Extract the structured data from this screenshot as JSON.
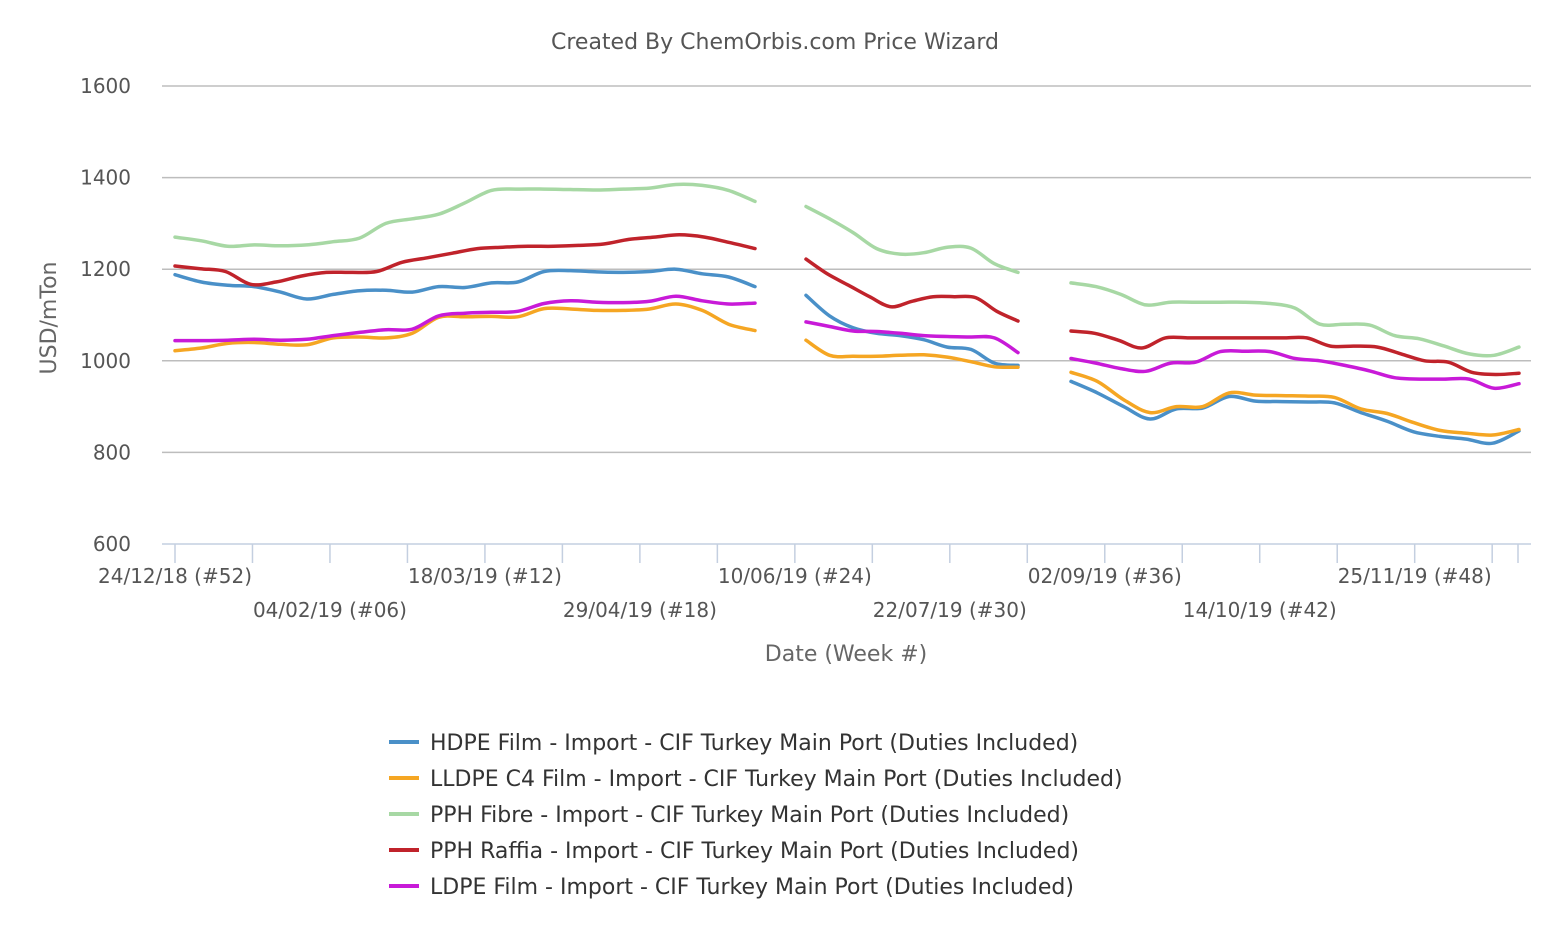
{
  "chart_data": {
    "type": "line",
    "title": "Created By ChemOrbis.com Price Wizard",
    "xlabel": "Date (Week #)",
    "ylabel": "USD/mTon",
    "ylim": [
      600,
      1600
    ],
    "yticks": [
      600,
      800,
      1000,
      1200,
      1400,
      1600
    ],
    "grid": true,
    "legend_position": "bottom",
    "x_weeks_total": 52,
    "x_tick_labels": [
      {
        "week": 0,
        "label": "24/12/18 (#52)"
      },
      {
        "week": 6,
        "label": "04/02/19 (#06)"
      },
      {
        "week": 12,
        "label": "18/03/19 (#12)"
      },
      {
        "week": 18,
        "label": "29/04/19 (#18)"
      },
      {
        "week": 24,
        "label": "10/06/19 (#24)"
      },
      {
        "week": 30,
        "label": "22/07/19 (#30)"
      },
      {
        "week": 36,
        "label": "02/09/19 (#36)"
      },
      {
        "week": 42,
        "label": "14/10/19 (#42)"
      },
      {
        "week": 48,
        "label": "25/11/19 (#48)"
      }
    ],
    "series": [
      {
        "name": "HDPE Film - Import - CIF Turkey Main Port (Duties Included)",
        "color": "#4a90c8",
        "segments": [
          [
            [
              0,
              1188
            ],
            [
              1,
              1172
            ],
            [
              2,
              1165
            ],
            [
              3,
              1162
            ],
            [
              4,
              1150
            ],
            [
              5,
              1135
            ],
            [
              6,
              1145
            ],
            [
              7,
              1153
            ],
            [
              8,
              1154
            ],
            [
              9,
              1150
            ],
            [
              10,
              1162
            ],
            [
              11,
              1160
            ],
            [
              12,
              1170
            ],
            [
              13,
              1172
            ],
            [
              14,
              1195
            ],
            [
              15,
              1197
            ],
            [
              16,
              1194
            ],
            [
              17,
              1193
            ],
            [
              18,
              1195
            ],
            [
              19,
              1200
            ],
            [
              20,
              1190
            ],
            [
              21,
              1183
            ],
            [
              22,
              1162
            ]
          ],
          [
            [
              24,
              1143
            ],
            [
              25,
              1098
            ],
            [
              26,
              1072
            ],
            [
              27,
              1060
            ],
            [
              28,
              1055
            ],
            [
              29,
              1046
            ],
            [
              30,
              1030
            ],
            [
              31,
              1025
            ],
            [
              32,
              995
            ],
            [
              33,
              990
            ]
          ],
          [
            [
              34,
              955
            ],
            [
              35,
              930
            ],
            [
              36,
              900
            ],
            [
              37,
              873
            ],
            [
              38,
              895
            ],
            [
              39,
              897
            ],
            [
              40,
              922
            ],
            [
              41,
              912
            ],
            [
              42,
              911
            ],
            [
              43,
              910
            ],
            [
              44,
              908
            ],
            [
              45,
              887
            ],
            [
              46,
              868
            ],
            [
              47,
              845
            ],
            [
              48,
              835
            ],
            [
              49,
              829
            ],
            [
              50,
              820
            ],
            [
              51,
              847
            ]
          ]
        ]
      },
      {
        "name": "LLDPE C4 Film - Import - CIF Turkey Main Port (Duties Included)",
        "color": "#f5a623",
        "segments": [
          [
            [
              0,
              1022
            ],
            [
              1,
              1028
            ],
            [
              2,
              1038
            ],
            [
              3,
              1040
            ],
            [
              4,
              1036
            ],
            [
              5,
              1035
            ],
            [
              6,
              1050
            ],
            [
              7,
              1052
            ],
            [
              8,
              1050
            ],
            [
              9,
              1060
            ],
            [
              10,
              1095
            ],
            [
              11,
              1096
            ],
            [
              12,
              1097
            ],
            [
              13,
              1096
            ],
            [
              14,
              1114
            ],
            [
              15,
              1113
            ],
            [
              16,
              1110
            ],
            [
              17,
              1110
            ],
            [
              18,
              1113
            ],
            [
              19,
              1124
            ],
            [
              20,
              1110
            ],
            [
              21,
              1080
            ],
            [
              22,
              1066
            ]
          ],
          [
            [
              24,
              1045
            ],
            [
              25,
              1012
            ],
            [
              26,
              1010
            ],
            [
              27,
              1010
            ],
            [
              28,
              1012
            ],
            [
              29,
              1013
            ],
            [
              30,
              1008
            ],
            [
              31,
              998
            ],
            [
              32,
              987
            ],
            [
              33,
              986
            ]
          ],
          [
            [
              34,
              975
            ],
            [
              35,
              955
            ],
            [
              36,
              915
            ],
            [
              37,
              887
            ],
            [
              38,
              900
            ],
            [
              39,
              900
            ],
            [
              40,
              930
            ],
            [
              41,
              925
            ],
            [
              42,
              924
            ],
            [
              43,
              923
            ],
            [
              44,
              920
            ],
            [
              45,
              895
            ],
            [
              46,
              885
            ],
            [
              47,
              865
            ],
            [
              48,
              848
            ],
            [
              49,
              842
            ],
            [
              50,
              838
            ],
            [
              51,
              850
            ]
          ]
        ]
      },
      {
        "name": "PPH Fibre - Import - CIF Turkey Main Port (Duties Included)",
        "color": "#a7d8a4",
        "segments": [
          [
            [
              0,
              1270
            ],
            [
              1,
              1262
            ],
            [
              2,
              1250
            ],
            [
              3,
              1253
            ],
            [
              4,
              1251
            ],
            [
              5,
              1253
            ],
            [
              6,
              1260
            ],
            [
              7,
              1268
            ],
            [
              8,
              1300
            ],
            [
              9,
              1310
            ],
            [
              10,
              1320
            ],
            [
              11,
              1345
            ],
            [
              12,
              1372
            ],
            [
              13,
              1375
            ],
            [
              14,
              1375
            ],
            [
              15,
              1374
            ],
            [
              16,
              1373
            ],
            [
              17,
              1375
            ],
            [
              18,
              1377
            ],
            [
              19,
              1385
            ],
            [
              20,
              1383
            ],
            [
              21,
              1372
            ],
            [
              22,
              1348
            ]
          ],
          [
            [
              24,
              1337
            ],
            [
              25,
              1310
            ],
            [
              26,
              1280
            ],
            [
              27,
              1245
            ],
            [
              28,
              1233
            ],
            [
              29,
              1236
            ],
            [
              30,
              1248
            ],
            [
              31,
              1246
            ],
            [
              32,
              1212
            ],
            [
              33,
              1193
            ]
          ],
          [
            [
              34,
              1170
            ],
            [
              35,
              1162
            ],
            [
              36,
              1145
            ],
            [
              37,
              1122
            ],
            [
              38,
              1128
            ],
            [
              39,
              1128
            ],
            [
              40,
              1128
            ],
            [
              41,
              1128
            ],
            [
              42,
              1125
            ],
            [
              43,
              1115
            ],
            [
              44,
              1080
            ],
            [
              45,
              1080
            ],
            [
              46,
              1078
            ],
            [
              47,
              1055
            ],
            [
              48,
              1048
            ],
            [
              49,
              1032
            ],
            [
              50,
              1015
            ],
            [
              51,
              1012
            ],
            [
              52,
              1030
            ]
          ]
        ]
      },
      {
        "name": "PPH Raffia - Import - CIF Turkey Main Port (Duties Included)",
        "color": "#c0232b",
        "segments": [
          [
            [
              0,
              1207
            ],
            [
              1,
              1201
            ],
            [
              2,
              1195
            ],
            [
              3,
              1167
            ],
            [
              4,
              1172
            ],
            [
              5,
              1185
            ],
            [
              6,
              1193
            ],
            [
              7,
              1193
            ],
            [
              8,
              1195
            ],
            [
              9,
              1215
            ],
            [
              10,
              1225
            ],
            [
              11,
              1235
            ],
            [
              12,
              1245
            ],
            [
              13,
              1248
            ],
            [
              14,
              1250
            ],
            [
              15,
              1250
            ],
            [
              16,
              1252
            ],
            [
              17,
              1255
            ],
            [
              18,
              1265
            ],
            [
              19,
              1270
            ],
            [
              20,
              1275
            ],
            [
              21,
              1270
            ],
            [
              22,
              1258
            ],
            [
              23,
              1245
            ]
          ],
          [
            [
              24,
              1222
            ],
            [
              25,
              1190
            ],
            [
              26,
              1165
            ],
            [
              27,
              1140
            ],
            [
              28,
              1118
            ],
            [
              29,
              1130
            ],
            [
              30,
              1140
            ],
            [
              31,
              1140
            ],
            [
              32,
              1138
            ],
            [
              33,
              1108
            ],
            [
              34,
              1087
            ]
          ],
          [
            [
              34,
              1065
            ],
            [
              35,
              1060
            ],
            [
              36,
              1045
            ],
            [
              37,
              1028
            ],
            [
              38,
              1050
            ],
            [
              39,
              1050
            ],
            [
              40,
              1050
            ],
            [
              41,
              1050
            ],
            [
              42,
              1050
            ],
            [
              43,
              1050
            ],
            [
              44,
              1050
            ],
            [
              45,
              1032
            ],
            [
              46,
              1032
            ],
            [
              47,
              1030
            ],
            [
              48,
              1015
            ],
            [
              49,
              1000
            ],
            [
              50,
              997
            ],
            [
              51,
              975
            ],
            [
              52,
              970
            ],
            [
              53,
              973
            ]
          ]
        ]
      },
      {
        "name": "LDPE Film - Import - CIF Turkey Main Port (Duties Included)",
        "color": "#c81ad8",
        "segments": [
          [
            [
              0,
              1044
            ],
            [
              1,
              1044
            ],
            [
              2,
              1045
            ],
            [
              3,
              1047
            ],
            [
              4,
              1045
            ],
            [
              5,
              1047
            ],
            [
              6,
              1055
            ],
            [
              7,
              1062
            ],
            [
              8,
              1068
            ],
            [
              9,
              1069
            ],
            [
              10,
              1098
            ],
            [
              11,
              1104
            ],
            [
              12,
              1106
            ],
            [
              13,
              1108
            ],
            [
              14,
              1125
            ],
            [
              15,
              1131
            ],
            [
              16,
              1128
            ],
            [
              17,
              1127
            ],
            [
              18,
              1130
            ],
            [
              19,
              1141
            ],
            [
              20,
              1131
            ],
            [
              21,
              1124
            ],
            [
              22,
              1126
            ]
          ],
          [
            [
              24,
              1085
            ],
            [
              25,
              1075
            ],
            [
              26,
              1065
            ],
            [
              27,
              1064
            ],
            [
              28,
              1060
            ],
            [
              29,
              1055
            ],
            [
              30,
              1053
            ],
            [
              31,
              1052
            ],
            [
              32,
              1050
            ],
            [
              33,
              1018
            ]
          ],
          [
            [
              34,
              1005
            ],
            [
              35,
              995
            ],
            [
              36,
              983
            ],
            [
              37,
              977
            ],
            [
              38,
              995
            ],
            [
              39,
              997
            ],
            [
              40,
              1020
            ],
            [
              41,
              1021
            ],
            [
              42,
              1020
            ],
            [
              43,
              1005
            ],
            [
              44,
              1000
            ],
            [
              45,
              990
            ],
            [
              46,
              978
            ],
            [
              47,
              963
            ],
            [
              48,
              960
            ],
            [
              49,
              960
            ],
            [
              50,
              960
            ],
            [
              51,
              940
            ],
            [
              52,
              950
            ]
          ]
        ]
      }
    ]
  }
}
